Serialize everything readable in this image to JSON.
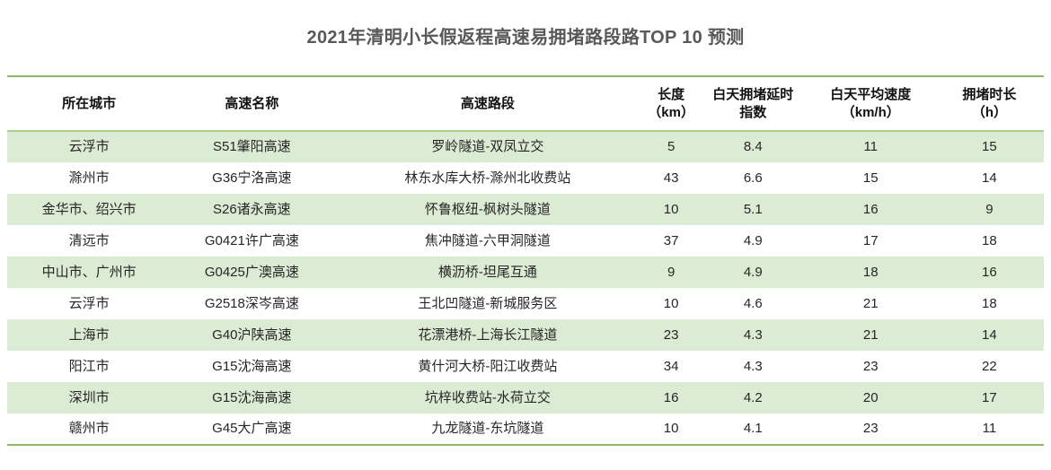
{
  "title": "2021年清明小长假返程高速易拥堵路段路TOP 10 预测",
  "colors": {
    "title_color": "#595959",
    "text_color": "#262626",
    "border_green": "#8ab863",
    "header_divider": "#abd08d",
    "stripe": "#dcebd3"
  },
  "chart_data": {
    "type": "table",
    "title": "2021年清明小长假返程高速易拥堵路段路TOP 10 预测",
    "columns": [
      [
        "所在城市"
      ],
      [
        "高速名称"
      ],
      [
        "高速路段"
      ],
      [
        "长度",
        "（km）"
      ],
      [
        "白天拥堵延时",
        "指数"
      ],
      [
        "白天平均速度",
        "（km/h）"
      ],
      [
        "拥堵时长",
        "（h）"
      ]
    ],
    "rows": [
      [
        "云浮市",
        "S51肇阳高速",
        "罗岭隧道-双凤立交",
        "5",
        "8.4",
        "11",
        "15"
      ],
      [
        "滁州市",
        "G36宁洛高速",
        "林东水库大桥-滁州北收费站",
        "43",
        "6.6",
        "15",
        "14"
      ],
      [
        "金华市、绍兴市",
        "S26诸永高速",
        "怀鲁枢纽-枫树头隧道",
        "10",
        "5.1",
        "16",
        "9"
      ],
      [
        "清远市",
        "G0421许广高速",
        "焦冲隧道-六甲洞隧道",
        "37",
        "4.9",
        "17",
        "18"
      ],
      [
        "中山市、广州市",
        "G0425广澳高速",
        "横沥桥-坦尾互通",
        "9",
        "4.9",
        "18",
        "16"
      ],
      [
        "云浮市",
        "G2518深岑高速",
        "王北凹隧道-新城服务区",
        "10",
        "4.6",
        "21",
        "18"
      ],
      [
        "上海市",
        "G40沪陕高速",
        "花漂港桥-上海长江隧道",
        "23",
        "4.3",
        "21",
        "14"
      ],
      [
        "阳江市",
        "G15沈海高速",
        "黄什河大桥-阳江收费站",
        "34",
        "4.3",
        "23",
        "22"
      ],
      [
        "深圳市",
        "G15沈海高速",
        "坑梓收费站-水荷立交",
        "16",
        "4.2",
        "20",
        "17"
      ],
      [
        "赣州市",
        "G45大广高速",
        "九龙隧道-东坑隧道",
        "10",
        "4.1",
        "23",
        "11"
      ]
    ],
    "layout": {
      "striped_rows": true,
      "grid": "horizontal-outer-only",
      "header_align": "center",
      "cell_align": "center"
    }
  }
}
